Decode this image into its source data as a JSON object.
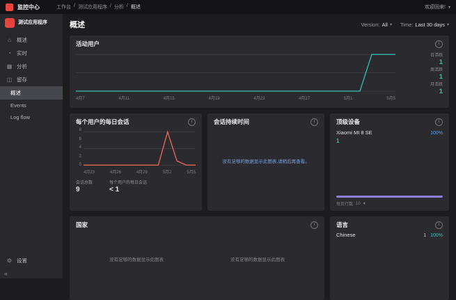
{
  "topbar": {
    "product_name": "监控中心",
    "breadcrumbs": [
      "工作台",
      "测试应用程序",
      "分析",
      "概述"
    ],
    "breadcrumb_separator": "/",
    "greeting": "欢迎回来!"
  },
  "sidebar": {
    "app_name": "测试应用程序",
    "items": [
      {
        "label": "概述"
      },
      {
        "label": "实时"
      },
      {
        "label": "分析"
      },
      {
        "label": "留存"
      },
      {
        "label": "概述"
      },
      {
        "label": "Events"
      },
      {
        "label": "Log flow"
      },
      {
        "label": "设置"
      }
    ],
    "collapse_glyph": "«"
  },
  "main": {
    "page_title": "概述",
    "version_label": "Version:",
    "version_value": "All",
    "time_label": "Time:",
    "time_value": "Last 30 days"
  },
  "cards": {
    "active_users": {
      "title": "活动用户",
      "stats": [
        {
          "label": "日活跃",
          "value": "1"
        },
        {
          "label": "周活跃",
          "value": "1"
        },
        {
          "label": "月活跃",
          "value": "1"
        }
      ],
      "chart_data": {
        "type": "line",
        "x_tick_labels": [
          "4月7",
          "4月11",
          "4月15",
          "4月19",
          "4月23",
          "4月27",
          "5月1",
          "5月5"
        ],
        "values": [
          0,
          0,
          0,
          0,
          0,
          0,
          0,
          0,
          0,
          0,
          0,
          0,
          0,
          0,
          0,
          0,
          0,
          0,
          0,
          0,
          0,
          0,
          0,
          0,
          0,
          1,
          1,
          1
        ],
        "ylim": [
          0,
          1
        ],
        "line_color": "#36b5a8",
        "title": "活动用户"
      }
    },
    "sessions_per_user": {
      "title": "每个用户的每日会话",
      "chart_data": {
        "type": "line",
        "x_tick_labels": [
          "4月23",
          "4月26",
          "4月29",
          "5月2",
          "5月5"
        ],
        "y_tick_labels": [
          "0",
          "2",
          "4",
          "6",
          "8"
        ],
        "values": [
          0,
          0,
          0,
          0,
          0,
          0,
          0,
          0,
          0,
          8,
          1,
          0,
          0
        ],
        "ylim": [
          0,
          8
        ],
        "line_color": "#e2655b",
        "title": "每个用户的每日会话"
      },
      "stats": [
        {
          "label": "会话总数",
          "value": "9"
        },
        {
          "label": "每个用户的每日会话",
          "value": "< 1"
        }
      ]
    },
    "session_duration": {
      "title": "会话持续时间",
      "empty_message": "没有足够的数据显示此图表,请稍后再查看。"
    },
    "top_devices": {
      "title": "顶级设备",
      "device_name": "Xiaomi MI 8 SE",
      "device_count": "1",
      "device_percent": "100%",
      "footer_label": "每页行数",
      "footer_value": "10"
    },
    "country": {
      "title": "国家",
      "empty_message_left": "没有足够的数据显示此图表",
      "empty_message_right": "没有足够的数据显示此图表"
    },
    "language": {
      "title": "语言",
      "row_name": "Chinese",
      "row_count": "1",
      "row_percent": "100%"
    }
  },
  "colors": {
    "accent_teal": "#36b5a8",
    "accent_red": "#e2655b",
    "accent_purple": "#8b7fd6",
    "accent_blue": "#5f9de8",
    "brand_red": "#e8433f"
  }
}
